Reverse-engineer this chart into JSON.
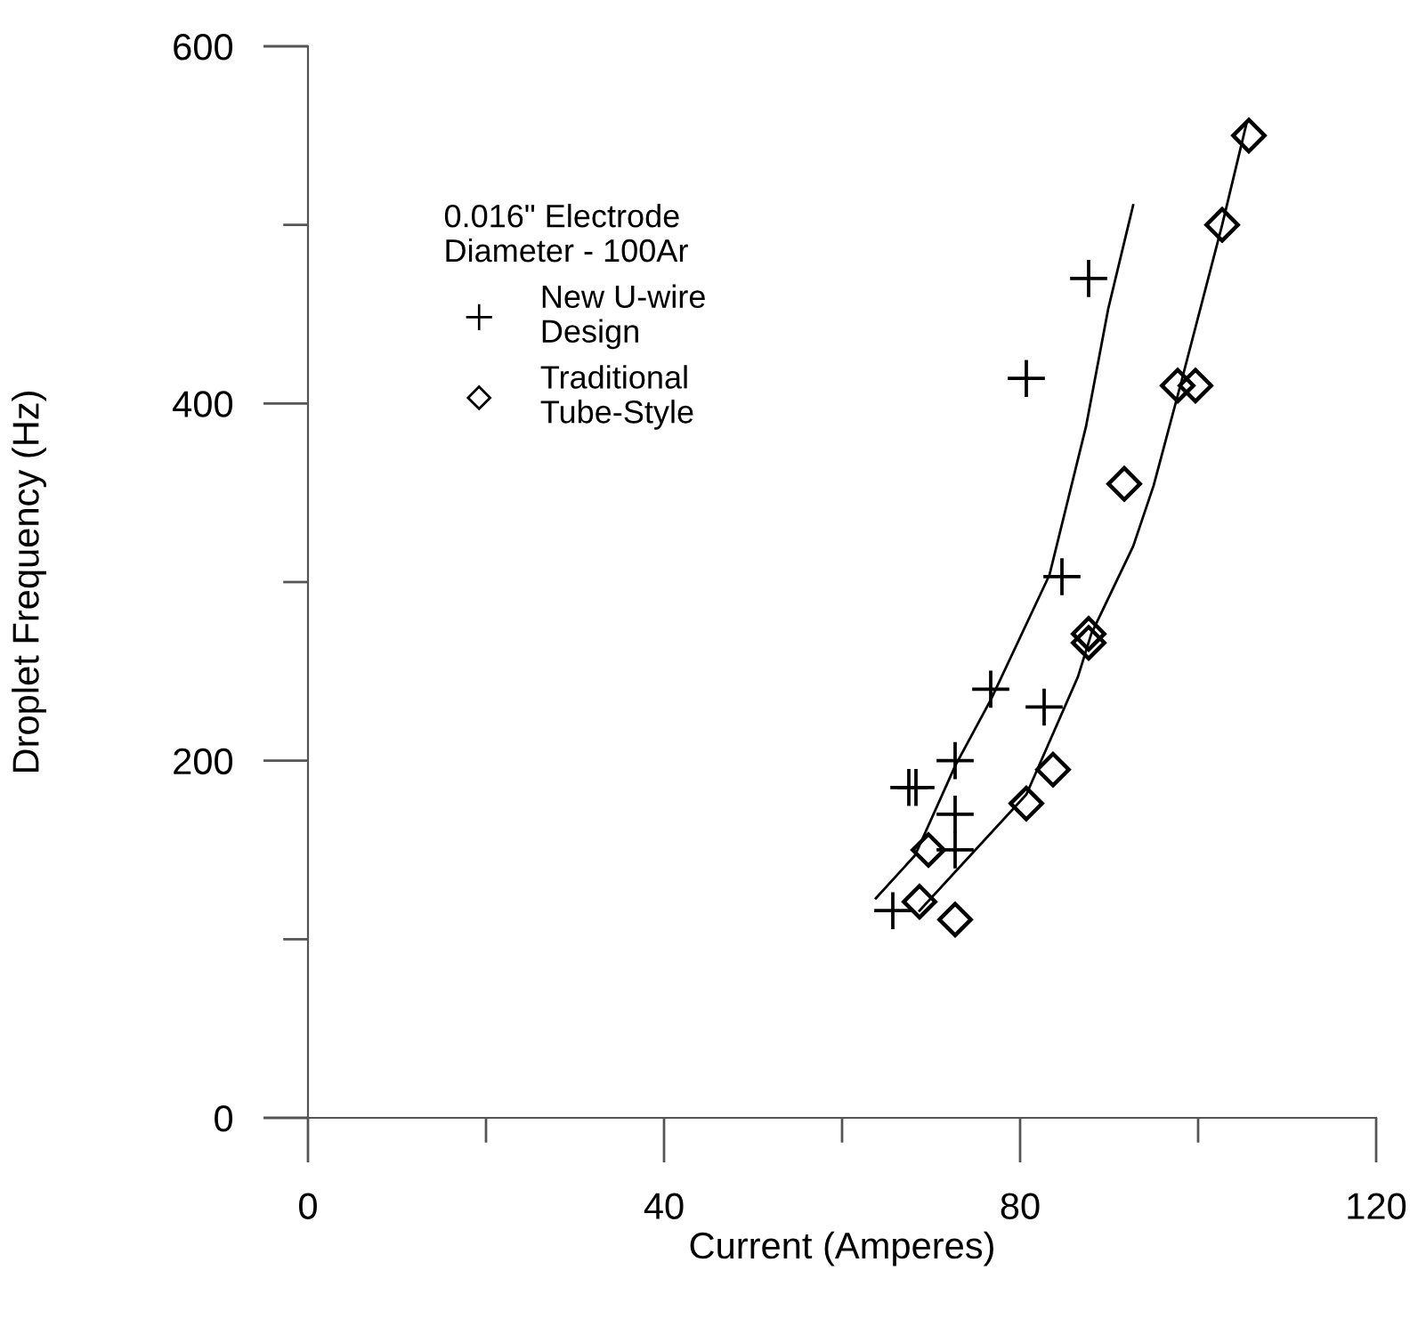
{
  "chart_data": {
    "type": "scatter",
    "xlabel": "Current (Amperes)",
    "ylabel": "Droplet Frequency (Hz)",
    "legend_title": "0.016\" Electrode\nDiameter - 100Ar",
    "legend": "top left",
    "grid": false,
    "xlim": [
      0,
      120
    ],
    "ylim": [
      0,
      600
    ],
    "xticks": [
      0,
      {
        "value": 20,
        "label": null
      },
      40,
      {
        "value": 60,
        "label": null
      },
      80,
      {
        "value": 100,
        "label": null
      },
      120
    ],
    "yticks": [
      0,
      {
        "value": 100,
        "label": null
      },
      200,
      {
        "value": 300,
        "label": null
      },
      400,
      {
        "value": 500,
        "label": null
      },
      600
    ],
    "series": [
      {
        "name": "New U-wire\nDesign",
        "marker": "cross",
        "color": "#000000",
        "x": [
          65.7,
          67.5,
          68.3,
          72.7,
          72.7,
          72.7,
          76.7,
          82.7,
          84.7,
          80.7,
          87.7
        ],
        "values": [
          116,
          185,
          185,
          150,
          170,
          200,
          240,
          230,
          303,
          414,
          470
        ]
      },
      {
        "name": "Traditional\nTube-Style",
        "marker": "diamond",
        "color": "#000000",
        "x": [
          68.7,
          69.7,
          72.7,
          80.7,
          83.7,
          87.7,
          87.7,
          91.7,
          97.7,
          99.7,
          102.7,
          105.7
        ],
        "values": [
          121,
          150,
          111,
          176,
          195,
          266,
          271,
          355,
          410,
          410,
          500,
          550
        ]
      },
      {
        "type": "line",
        "color": "#000000",
        "line_style": "solid",
        "x": [
          63.8,
          68.2,
          72.7,
          76.7,
          83.3,
          87.4,
          89.9,
          92.7
        ],
        "values": [
          123,
          147,
          197,
          234,
          304,
          387,
          453,
          511
        ]
      },
      {
        "type": "line",
        "color": "#000000",
        "line_style": "solid",
        "x": [
          68.7,
          80.7,
          86.5,
          88,
          92.7,
          95,
          98,
          102.7,
          105.4
        ],
        "values": [
          116,
          181,
          247,
          271,
          320,
          354,
          410,
          500,
          556
        ]
      }
    ]
  }
}
